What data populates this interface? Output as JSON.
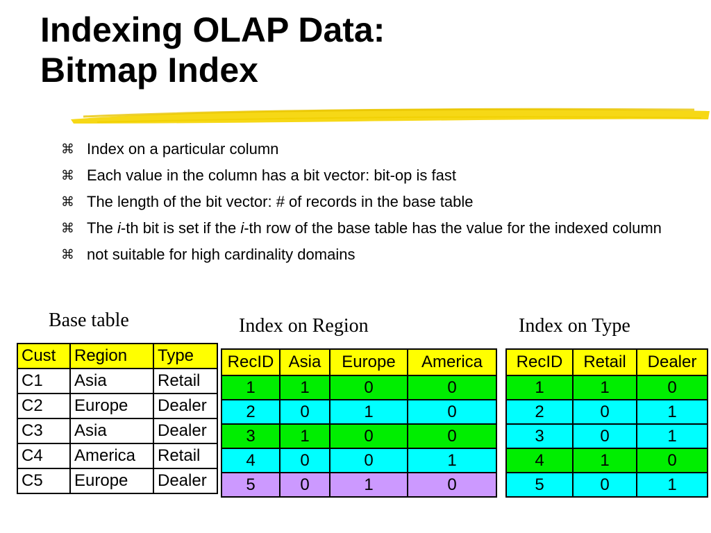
{
  "slide": {
    "title_line1": "Indexing OLAP Data:",
    "title_line2": "Bitmap Index",
    "bullet_icon": "z-bullet-icon",
    "bullet_symbol": "⌘",
    "bullets": [
      {
        "text": "Index on a particular column"
      },
      {
        "text": "Each value in the column has a bit vector: bit-op is fast"
      },
      {
        "text": "The length of the bit vector: # of records in the base table"
      },
      {
        "pre": "The ",
        "i1": "i",
        "mid": "-th bit is set if the ",
        "i2": "i",
        "post": "-th row of the base table has the value for the indexed column"
      },
      {
        "text": "not suitable for high cardinality domains"
      }
    ]
  },
  "base_table": {
    "caption": "Base table",
    "headers": [
      "Cust",
      "Region",
      "Type"
    ],
    "rows": [
      [
        "C1",
        "Asia",
        "Retail"
      ],
      [
        "C2",
        "Europe",
        "Dealer"
      ],
      [
        "C3",
        "Asia",
        "Dealer"
      ],
      [
        "C4",
        "America",
        "Retail"
      ],
      [
        "C5",
        "Europe",
        "Dealer"
      ]
    ]
  },
  "region_index": {
    "caption": "Index on Region",
    "headers": [
      "RecID",
      "Asia",
      "Europe",
      "America"
    ],
    "rows": [
      [
        "1",
        "1",
        "0",
        "0"
      ],
      [
        "2",
        "0",
        "1",
        "0"
      ],
      [
        "3",
        "1",
        "0",
        "0"
      ],
      [
        "4",
        "0",
        "0",
        "1"
      ],
      [
        "5",
        "0",
        "1",
        "0"
      ]
    ]
  },
  "type_index": {
    "caption": "Index on Type",
    "headers": [
      "RecID",
      "Retail",
      "Dealer"
    ],
    "rows": [
      [
        "1",
        "1",
        "0"
      ],
      [
        "2",
        "0",
        "1"
      ],
      [
        "3",
        "0",
        "1"
      ],
      [
        "4",
        "1",
        "0"
      ],
      [
        "5",
        "0",
        "1"
      ]
    ]
  },
  "colors": {
    "header_yellow": "#ffff00",
    "row_green": "#00ee00",
    "row_cyan": "#00ffff",
    "row_purple": "#cc99ff",
    "swoosh": "#f5d60a"
  }
}
